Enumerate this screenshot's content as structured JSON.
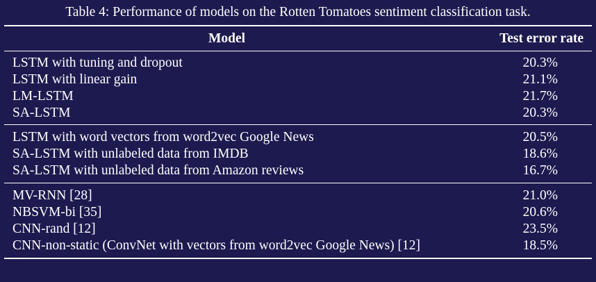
{
  "caption": "Table 4: Performance of models on the Rotten Tomatoes sentiment classification task.",
  "headers": {
    "model": "Model",
    "error": "Test error rate"
  },
  "groups": [
    {
      "rows": [
        {
          "model": "LSTM with tuning and dropout",
          "error": "20.3%"
        },
        {
          "model": "LSTM with linear gain",
          "error": "21.1%"
        },
        {
          "model": "LM-LSTM",
          "error": "21.7%"
        },
        {
          "model": "SA-LSTM",
          "error": "20.3%"
        }
      ]
    },
    {
      "rows": [
        {
          "model": "LSTM with word vectors from word2vec Google News",
          "error": "20.5%"
        },
        {
          "model": "SA-LSTM with unlabeled data from IMDB",
          "error": "18.6%"
        },
        {
          "model": "SA-LSTM with unlabeled data from Amazon reviews",
          "error": "16.7%"
        }
      ]
    },
    {
      "rows": [
        {
          "model": "MV-RNN [28]",
          "error": "21.0%"
        },
        {
          "model": "NBSVM-bi [35]",
          "error": "20.6%"
        },
        {
          "model": "CNN-rand [12]",
          "error": "23.5%"
        },
        {
          "model": "CNN-non-static (ConvNet with vectors from word2vec Google News) [12]",
          "error": "18.5%"
        }
      ]
    }
  ],
  "colors": {
    "background": "#1d1a4f",
    "text": "#ffffff"
  }
}
